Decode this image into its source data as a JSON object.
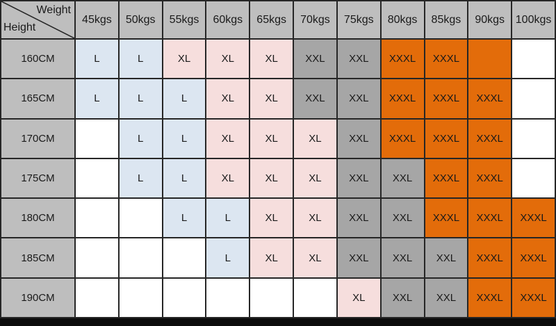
{
  "chart_data": {
    "type": "table",
    "corner": {
      "weight_label": "Weight",
      "height_label": "Height"
    },
    "weights": [
      "45kgs",
      "50kgs",
      "55kgs",
      "60kgs",
      "65kgs",
      "70kgs",
      "75kgs",
      "80kgs",
      "85kgs",
      "90kgs",
      "100kgs"
    ],
    "rows": [
      {
        "height": "160CM",
        "cells": [
          [
            "L",
            "blue"
          ],
          [
            "L",
            "blue"
          ],
          [
            "XL",
            "pink"
          ],
          [
            "XL",
            "pink"
          ],
          [
            "XL",
            "pink"
          ],
          [
            "XXL",
            "gray"
          ],
          [
            "XXL",
            "gray"
          ],
          [
            "XXXL",
            "orange"
          ],
          [
            "XXXL",
            "orange"
          ],
          [
            "",
            "orange"
          ],
          [
            "",
            "white"
          ]
        ]
      },
      {
        "height": "165CM",
        "cells": [
          [
            "L",
            "blue"
          ],
          [
            "L",
            "blue"
          ],
          [
            "L",
            "blue"
          ],
          [
            "XL",
            "pink"
          ],
          [
            "XL",
            "pink"
          ],
          [
            "XXL",
            "gray"
          ],
          [
            "XXL",
            "gray"
          ],
          [
            "XXXL",
            "orange"
          ],
          [
            "XXXL",
            "orange"
          ],
          [
            "XXXL",
            "orange"
          ],
          [
            "",
            "white"
          ]
        ]
      },
      {
        "height": "170CM",
        "cells": [
          [
            "",
            "white"
          ],
          [
            "L",
            "blue"
          ],
          [
            "L",
            "blue"
          ],
          [
            "XL",
            "pink"
          ],
          [
            "XL",
            "pink"
          ],
          [
            "XL",
            "pink"
          ],
          [
            "XXL",
            "gray"
          ],
          [
            "XXXL",
            "orange"
          ],
          [
            "XXXL",
            "orange"
          ],
          [
            "XXXL",
            "orange"
          ],
          [
            "",
            "white"
          ]
        ]
      },
      {
        "height": "175CM",
        "cells": [
          [
            "",
            "white"
          ],
          [
            "L",
            "blue"
          ],
          [
            "L",
            "blue"
          ],
          [
            "XL",
            "pink"
          ],
          [
            "XL",
            "pink"
          ],
          [
            "XL",
            "pink"
          ],
          [
            "XXL",
            "gray"
          ],
          [
            "XXL",
            "gray"
          ],
          [
            "XXXL",
            "orange"
          ],
          [
            "XXXL",
            "orange"
          ],
          [
            "",
            "white"
          ]
        ]
      },
      {
        "height": "180CM",
        "cells": [
          [
            "",
            "white"
          ],
          [
            "",
            "white"
          ],
          [
            "L",
            "blue"
          ],
          [
            "L",
            "blue"
          ],
          [
            "XL",
            "pink"
          ],
          [
            "XL",
            "pink"
          ],
          [
            "XXL",
            "gray"
          ],
          [
            "XXL",
            "gray"
          ],
          [
            "XXXL",
            "orange"
          ],
          [
            "XXXL",
            "orange"
          ],
          [
            "XXXL",
            "orange"
          ]
        ]
      },
      {
        "height": "185CM",
        "cells": [
          [
            "",
            "white"
          ],
          [
            "",
            "white"
          ],
          [
            "",
            "white"
          ],
          [
            "L",
            "blue"
          ],
          [
            "XL",
            "pink"
          ],
          [
            "XL",
            "pink"
          ],
          [
            "XXL",
            "gray"
          ],
          [
            "XXL",
            "gray"
          ],
          [
            "XXL",
            "gray"
          ],
          [
            "XXXL",
            "orange"
          ],
          [
            "XXXL",
            "orange"
          ]
        ]
      },
      {
        "height": "190CM",
        "cells": [
          [
            "",
            "white"
          ],
          [
            "",
            "white"
          ],
          [
            "",
            "white"
          ],
          [
            "",
            "white"
          ],
          [
            "",
            "white"
          ],
          [
            "",
            "white"
          ],
          [
            "XL",
            "pink"
          ],
          [
            "XXL",
            "gray"
          ],
          [
            "XXL",
            "gray"
          ],
          [
            "XXXL",
            "orange"
          ],
          [
            "XXXL",
            "orange"
          ]
        ]
      }
    ],
    "colors": {
      "header_bg": "#bebebe",
      "size_L_bg": "#dce6f1",
      "size_XL_bg": "#f6dedd",
      "size_XXL_bg": "#a6a6a6",
      "size_XXXL_bg": "#e36c0a",
      "empty_bg": "#ffffff",
      "border": "#262626",
      "text": "#1a1a1a",
      "bottom_bar": "#0d0d0d"
    }
  }
}
